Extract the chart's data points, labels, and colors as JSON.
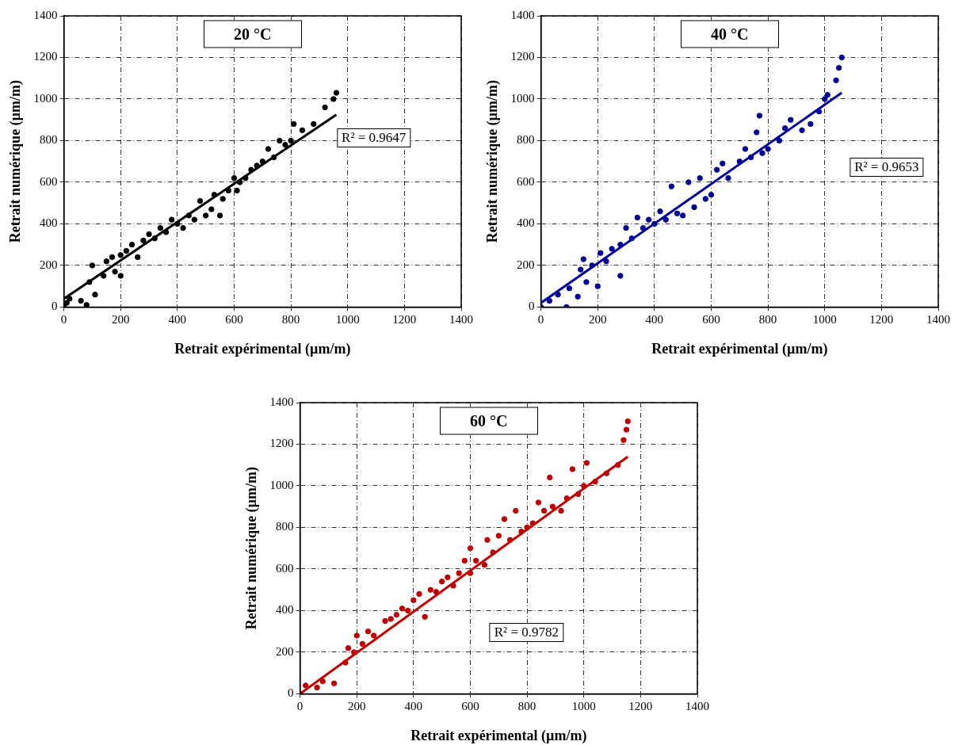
{
  "chart_data": [
    {
      "type": "scatter",
      "title": "20 °C",
      "xlabel": "Retrait expérimental (µm/m)",
      "ylabel": "Retrait numérique (µm/m)",
      "xlim": [
        0,
        1400
      ],
      "ylim": [
        0,
        1400
      ],
      "xticks": [
        0,
        200,
        400,
        600,
        800,
        1000,
        1200,
        1400
      ],
      "yticks": [
        0,
        200,
        400,
        600,
        800,
        1000,
        1200,
        1400
      ],
      "grid": true,
      "annotations": [
        "R² = 0.9647"
      ],
      "series": [
        {
          "type": "scatter",
          "marker": "circle",
          "color": "#000000",
          "x": [
            0,
            10,
            20,
            60,
            80,
            90,
            100,
            110,
            140,
            150,
            170,
            180,
            200,
            200,
            220,
            240,
            260,
            280,
            300,
            320,
            340,
            360,
            380,
            400,
            420,
            440,
            460,
            480,
            500,
            520,
            530,
            550,
            560,
            580,
            600,
            610,
            620,
            640,
            660,
            680,
            700,
            720,
            740,
            760,
            780,
            800,
            810,
            840,
            880,
            920,
            950,
            960
          ],
          "values": [
            0,
            20,
            40,
            30,
            10,
            120,
            200,
            60,
            150,
            220,
            240,
            170,
            150,
            250,
            270,
            300,
            240,
            320,
            350,
            330,
            380,
            360,
            420,
            400,
            380,
            440,
            420,
            510,
            440,
            470,
            540,
            440,
            520,
            560,
            620,
            560,
            600,
            620,
            660,
            680,
            700,
            760,
            720,
            800,
            780,
            800,
            880,
            850,
            880,
            960,
            1000,
            1030
          ]
        },
        {
          "type": "line",
          "marker": "none",
          "line_style": "solid",
          "color": "#000000",
          "x": [
            0,
            960
          ],
          "values": [
            40,
            925
          ]
        }
      ]
    },
    {
      "type": "scatter",
      "title": "40 °C",
      "xlabel": "Retrait expérimental (µm/m)",
      "ylabel": "Retrait numérique (µm/m)",
      "xlim": [
        0,
        1400
      ],
      "ylim": [
        0,
        1400
      ],
      "xticks": [
        0,
        200,
        400,
        600,
        800,
        1000,
        1200,
        1400
      ],
      "yticks": [
        0,
        200,
        400,
        600,
        800,
        1000,
        1200,
        1400
      ],
      "grid": true,
      "annotations": [
        "R² = 0.9653"
      ],
      "series": [
        {
          "type": "scatter",
          "marker": "circle",
          "color": "#000099",
          "x": [
            0,
            30,
            60,
            90,
            100,
            130,
            140,
            150,
            160,
            180,
            200,
            210,
            230,
            250,
            280,
            280,
            300,
            320,
            340,
            360,
            380,
            400,
            420,
            440,
            460,
            480,
            500,
            520,
            540,
            560,
            580,
            600,
            620,
            640,
            660,
            700,
            720,
            740,
            760,
            770,
            780,
            800,
            840,
            860,
            880,
            920,
            950,
            980,
            1000,
            1010,
            1040,
            1050,
            1060
          ],
          "values": [
            0,
            30,
            60,
            0,
            90,
            50,
            180,
            230,
            120,
            200,
            100,
            260,
            220,
            280,
            150,
            300,
            380,
            330,
            430,
            380,
            420,
            400,
            460,
            420,
            580,
            450,
            440,
            600,
            480,
            620,
            520,
            540,
            660,
            690,
            620,
            700,
            760,
            720,
            840,
            920,
            740,
            760,
            800,
            860,
            900,
            850,
            880,
            940,
            1000,
            1020,
            1090,
            1150,
            1200
          ]
        },
        {
          "type": "line",
          "marker": "none",
          "line_style": "solid",
          "color": "#000099",
          "x": [
            0,
            1060
          ],
          "values": [
            20,
            1030
          ]
        }
      ]
    },
    {
      "type": "scatter",
      "title": "60 °C",
      "xlabel": "Retrait expérimental (µm/m)",
      "ylabel": "Retrait numérique (µm/m)",
      "xlim": [
        0,
        1400
      ],
      "ylim": [
        0,
        1400
      ],
      "xticks": [
        0,
        200,
        400,
        600,
        800,
        1000,
        1200,
        1400
      ],
      "yticks": [
        0,
        200,
        400,
        600,
        800,
        1000,
        1200,
        1400
      ],
      "grid": true,
      "annotations": [
        "R² = 0.9782"
      ],
      "series": [
        {
          "type": "scatter",
          "marker": "circle",
          "color": "#c00000",
          "x": [
            0,
            20,
            60,
            80,
            120,
            160,
            170,
            190,
            200,
            220,
            240,
            260,
            300,
            320,
            340,
            360,
            380,
            400,
            420,
            440,
            460,
            480,
            500,
            520,
            540,
            560,
            580,
            600,
            600,
            620,
            650,
            660,
            680,
            700,
            720,
            740,
            760,
            780,
            800,
            820,
            840,
            860,
            880,
            890,
            920,
            940,
            960,
            980,
            1000,
            1010,
            1040,
            1080,
            1120,
            1140,
            1150,
            1155
          ],
          "values": [
            0,
            40,
            30,
            60,
            50,
            150,
            220,
            200,
            280,
            240,
            300,
            280,
            350,
            360,
            380,
            410,
            400,
            450,
            480,
            370,
            500,
            490,
            540,
            560,
            520,
            580,
            640,
            700,
            580,
            640,
            620,
            740,
            680,
            760,
            840,
            740,
            880,
            780,
            800,
            820,
            920,
            880,
            1040,
            900,
            880,
            940,
            1080,
            960,
            1000,
            1110,
            1020,
            1060,
            1100,
            1220,
            1270,
            1310
          ]
        },
        {
          "type": "line",
          "marker": "none",
          "line_style": "solid",
          "color": "#c00000",
          "x": [
            0,
            1155
          ],
          "values": [
            0,
            1140
          ]
        }
      ]
    }
  ]
}
